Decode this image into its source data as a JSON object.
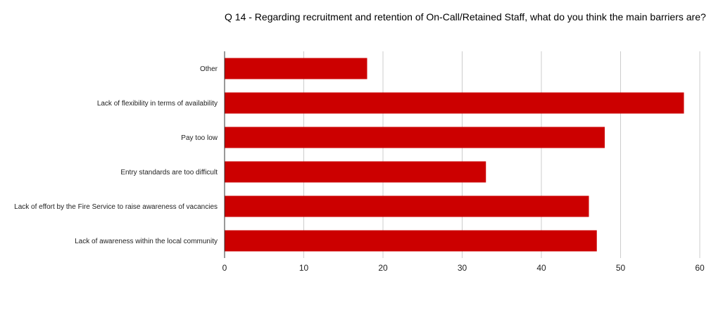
{
  "chart_data": {
    "type": "bar",
    "orientation": "horizontal",
    "title": "Q 14 - Regarding recruitment and retention of On-Call/Retained Staff, what do you think the main barriers are?",
    "categories": [
      "Other",
      "Lack of flexibility in terms of availability",
      "Pay too low",
      "Entry standards are too difficult",
      "Lack of effort by the Fire Service to raise awareness of vacancies",
      "Lack of awareness within the local community"
    ],
    "values": [
      18,
      58,
      48,
      33,
      46,
      47
    ],
    "xlim": [
      0,
      60
    ],
    "xticks": [
      "0",
      "10",
      "20",
      "30",
      "40",
      "50",
      "60"
    ],
    "grid": "vertical",
    "legend": "none",
    "bar_color": "#cc0000",
    "grid_color": "#cccccc",
    "axis_color": "#333333"
  }
}
